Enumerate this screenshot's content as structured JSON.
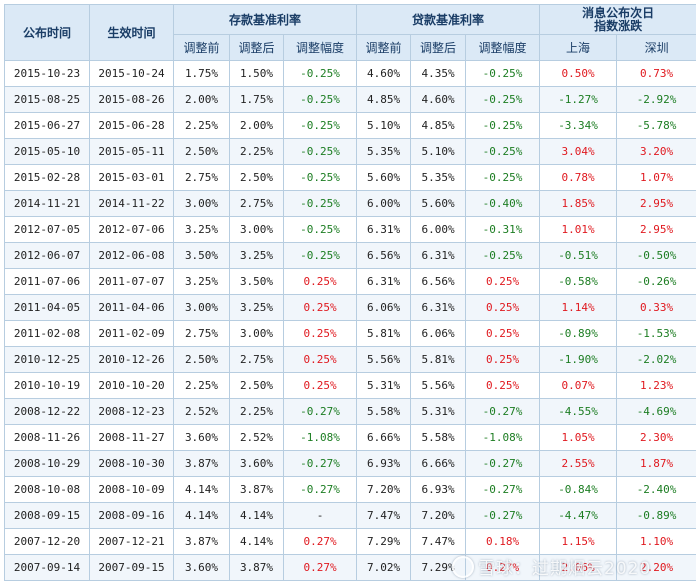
{
  "header": {
    "announce_time": "公布时间",
    "effective_time": "生效时间",
    "deposit_group": "存款基准利率",
    "loan_group": "贷款基准利率",
    "index_group_line1": "消息公布次日",
    "index_group_line2": "指数涨跌",
    "before": "调整前",
    "after": "调整后",
    "change": "调整幅度",
    "shanghai": "上海",
    "shenzhen": "深圳"
  },
  "rows": [
    {
      "announce": "2015-10-23",
      "effective": "2015-10-24",
      "dep_before": "1.75%",
      "dep_after": "1.50%",
      "dep_change": "-0.25%",
      "loan_before": "4.60%",
      "loan_after": "4.35%",
      "loan_change": "-0.25%",
      "sh": "0.50%",
      "sz": "0.73%"
    },
    {
      "announce": "2015-08-25",
      "effective": "2015-08-26",
      "dep_before": "2.00%",
      "dep_after": "1.75%",
      "dep_change": "-0.25%",
      "loan_before": "4.85%",
      "loan_after": "4.60%",
      "loan_change": "-0.25%",
      "sh": "-1.27%",
      "sz": "-2.92%"
    },
    {
      "announce": "2015-06-27",
      "effective": "2015-06-28",
      "dep_before": "2.25%",
      "dep_after": "2.00%",
      "dep_change": "-0.25%",
      "loan_before": "5.10%",
      "loan_after": "4.85%",
      "loan_change": "-0.25%",
      "sh": "-3.34%",
      "sz": "-5.78%"
    },
    {
      "announce": "2015-05-10",
      "effective": "2015-05-11",
      "dep_before": "2.50%",
      "dep_after": "2.25%",
      "dep_change": "-0.25%",
      "loan_before": "5.35%",
      "loan_after": "5.10%",
      "loan_change": "-0.25%",
      "sh": "3.04%",
      "sz": "3.20%"
    },
    {
      "announce": "2015-02-28",
      "effective": "2015-03-01",
      "dep_before": "2.75%",
      "dep_after": "2.50%",
      "dep_change": "-0.25%",
      "loan_before": "5.60%",
      "loan_after": "5.35%",
      "loan_change": "-0.25%",
      "sh": "0.78%",
      "sz": "1.07%"
    },
    {
      "announce": "2014-11-21",
      "effective": "2014-11-22",
      "dep_before": "3.00%",
      "dep_after": "2.75%",
      "dep_change": "-0.25%",
      "loan_before": "6.00%",
      "loan_after": "5.60%",
      "loan_change": "-0.40%",
      "sh": "1.85%",
      "sz": "2.95%"
    },
    {
      "announce": "2012-07-05",
      "effective": "2012-07-06",
      "dep_before": "3.25%",
      "dep_after": "3.00%",
      "dep_change": "-0.25%",
      "loan_before": "6.31%",
      "loan_after": "6.00%",
      "loan_change": "-0.31%",
      "sh": "1.01%",
      "sz": "2.95%"
    },
    {
      "announce": "2012-06-07",
      "effective": "2012-06-08",
      "dep_before": "3.50%",
      "dep_after": "3.25%",
      "dep_change": "-0.25%",
      "loan_before": "6.56%",
      "loan_after": "6.31%",
      "loan_change": "-0.25%",
      "sh": "-0.51%",
      "sz": "-0.50%"
    },
    {
      "announce": "2011-07-06",
      "effective": "2011-07-07",
      "dep_before": "3.25%",
      "dep_after": "3.50%",
      "dep_change": "0.25%",
      "loan_before": "6.31%",
      "loan_after": "6.56%",
      "loan_change": "0.25%",
      "sh": "-0.58%",
      "sz": "-0.26%"
    },
    {
      "announce": "2011-04-05",
      "effective": "2011-04-06",
      "dep_before": "3.00%",
      "dep_after": "3.25%",
      "dep_change": "0.25%",
      "loan_before": "6.06%",
      "loan_after": "6.31%",
      "loan_change": "0.25%",
      "sh": "1.14%",
      "sz": "0.33%"
    },
    {
      "announce": "2011-02-08",
      "effective": "2011-02-09",
      "dep_before": "2.75%",
      "dep_after": "3.00%",
      "dep_change": "0.25%",
      "loan_before": "5.81%",
      "loan_after": "6.06%",
      "loan_change": "0.25%",
      "sh": "-0.89%",
      "sz": "-1.53%"
    },
    {
      "announce": "2010-12-25",
      "effective": "2010-12-26",
      "dep_before": "2.50%",
      "dep_after": "2.75%",
      "dep_change": "0.25%",
      "loan_before": "5.56%",
      "loan_after": "5.81%",
      "loan_change": "0.25%",
      "sh": "-1.90%",
      "sz": "-2.02%"
    },
    {
      "announce": "2010-10-19",
      "effective": "2010-10-20",
      "dep_before": "2.25%",
      "dep_after": "2.50%",
      "dep_change": "0.25%",
      "loan_before": "5.31%",
      "loan_after": "5.56%",
      "loan_change": "0.25%",
      "sh": "0.07%",
      "sz": "1.23%"
    },
    {
      "announce": "2008-12-22",
      "effective": "2008-12-23",
      "dep_before": "2.52%",
      "dep_after": "2.25%",
      "dep_change": "-0.27%",
      "loan_before": "5.58%",
      "loan_after": "5.31%",
      "loan_change": "-0.27%",
      "sh": "-4.55%",
      "sz": "-4.69%"
    },
    {
      "announce": "2008-11-26",
      "effective": "2008-11-27",
      "dep_before": "3.60%",
      "dep_after": "2.52%",
      "dep_change": "-1.08%",
      "loan_before": "6.66%",
      "loan_after": "5.58%",
      "loan_change": "-1.08%",
      "sh": "1.05%",
      "sz": "2.30%"
    },
    {
      "announce": "2008-10-29",
      "effective": "2008-10-30",
      "dep_before": "3.87%",
      "dep_after": "3.60%",
      "dep_change": "-0.27%",
      "loan_before": "6.93%",
      "loan_after": "6.66%",
      "loan_change": "-0.27%",
      "sh": "2.55%",
      "sz": "1.87%"
    },
    {
      "announce": "2008-10-08",
      "effective": "2008-10-09",
      "dep_before": "4.14%",
      "dep_after": "3.87%",
      "dep_change": "-0.27%",
      "loan_before": "7.20%",
      "loan_after": "6.93%",
      "loan_change": "-0.27%",
      "sh": "-0.84%",
      "sz": "-2.40%"
    },
    {
      "announce": "2008-09-15",
      "effective": "2008-09-16",
      "dep_before": "4.14%",
      "dep_after": "4.14%",
      "dep_change": "-",
      "loan_before": "7.47%",
      "loan_after": "7.20%",
      "loan_change": "-0.27%",
      "sh": "-4.47%",
      "sz": "-0.89%"
    },
    {
      "announce": "2007-12-20",
      "effective": "2007-12-21",
      "dep_before": "3.87%",
      "dep_after": "4.14%",
      "dep_change": "0.27%",
      "loan_before": "7.29%",
      "loan_after": "7.47%",
      "loan_change": "0.18%",
      "sh": "1.15%",
      "sz": "1.10%"
    },
    {
      "announce": "2007-09-14",
      "effective": "2007-09-15",
      "dep_before": "3.60%",
      "dep_after": "3.87%",
      "dep_change": "0.27%",
      "loan_before": "7.02%",
      "loan_after": "7.29%",
      "loan_change": "0.27%",
      "sh": "2.06%",
      "sz": "2.20%"
    }
  ],
  "colors": {
    "header_bg": "#dbe9f6",
    "header_text": "#1a3d66",
    "border": "#b7cde0",
    "positive": "#e0191f",
    "negative": "#1c7d22"
  },
  "watermark": "雪球：过期烟云2020"
}
